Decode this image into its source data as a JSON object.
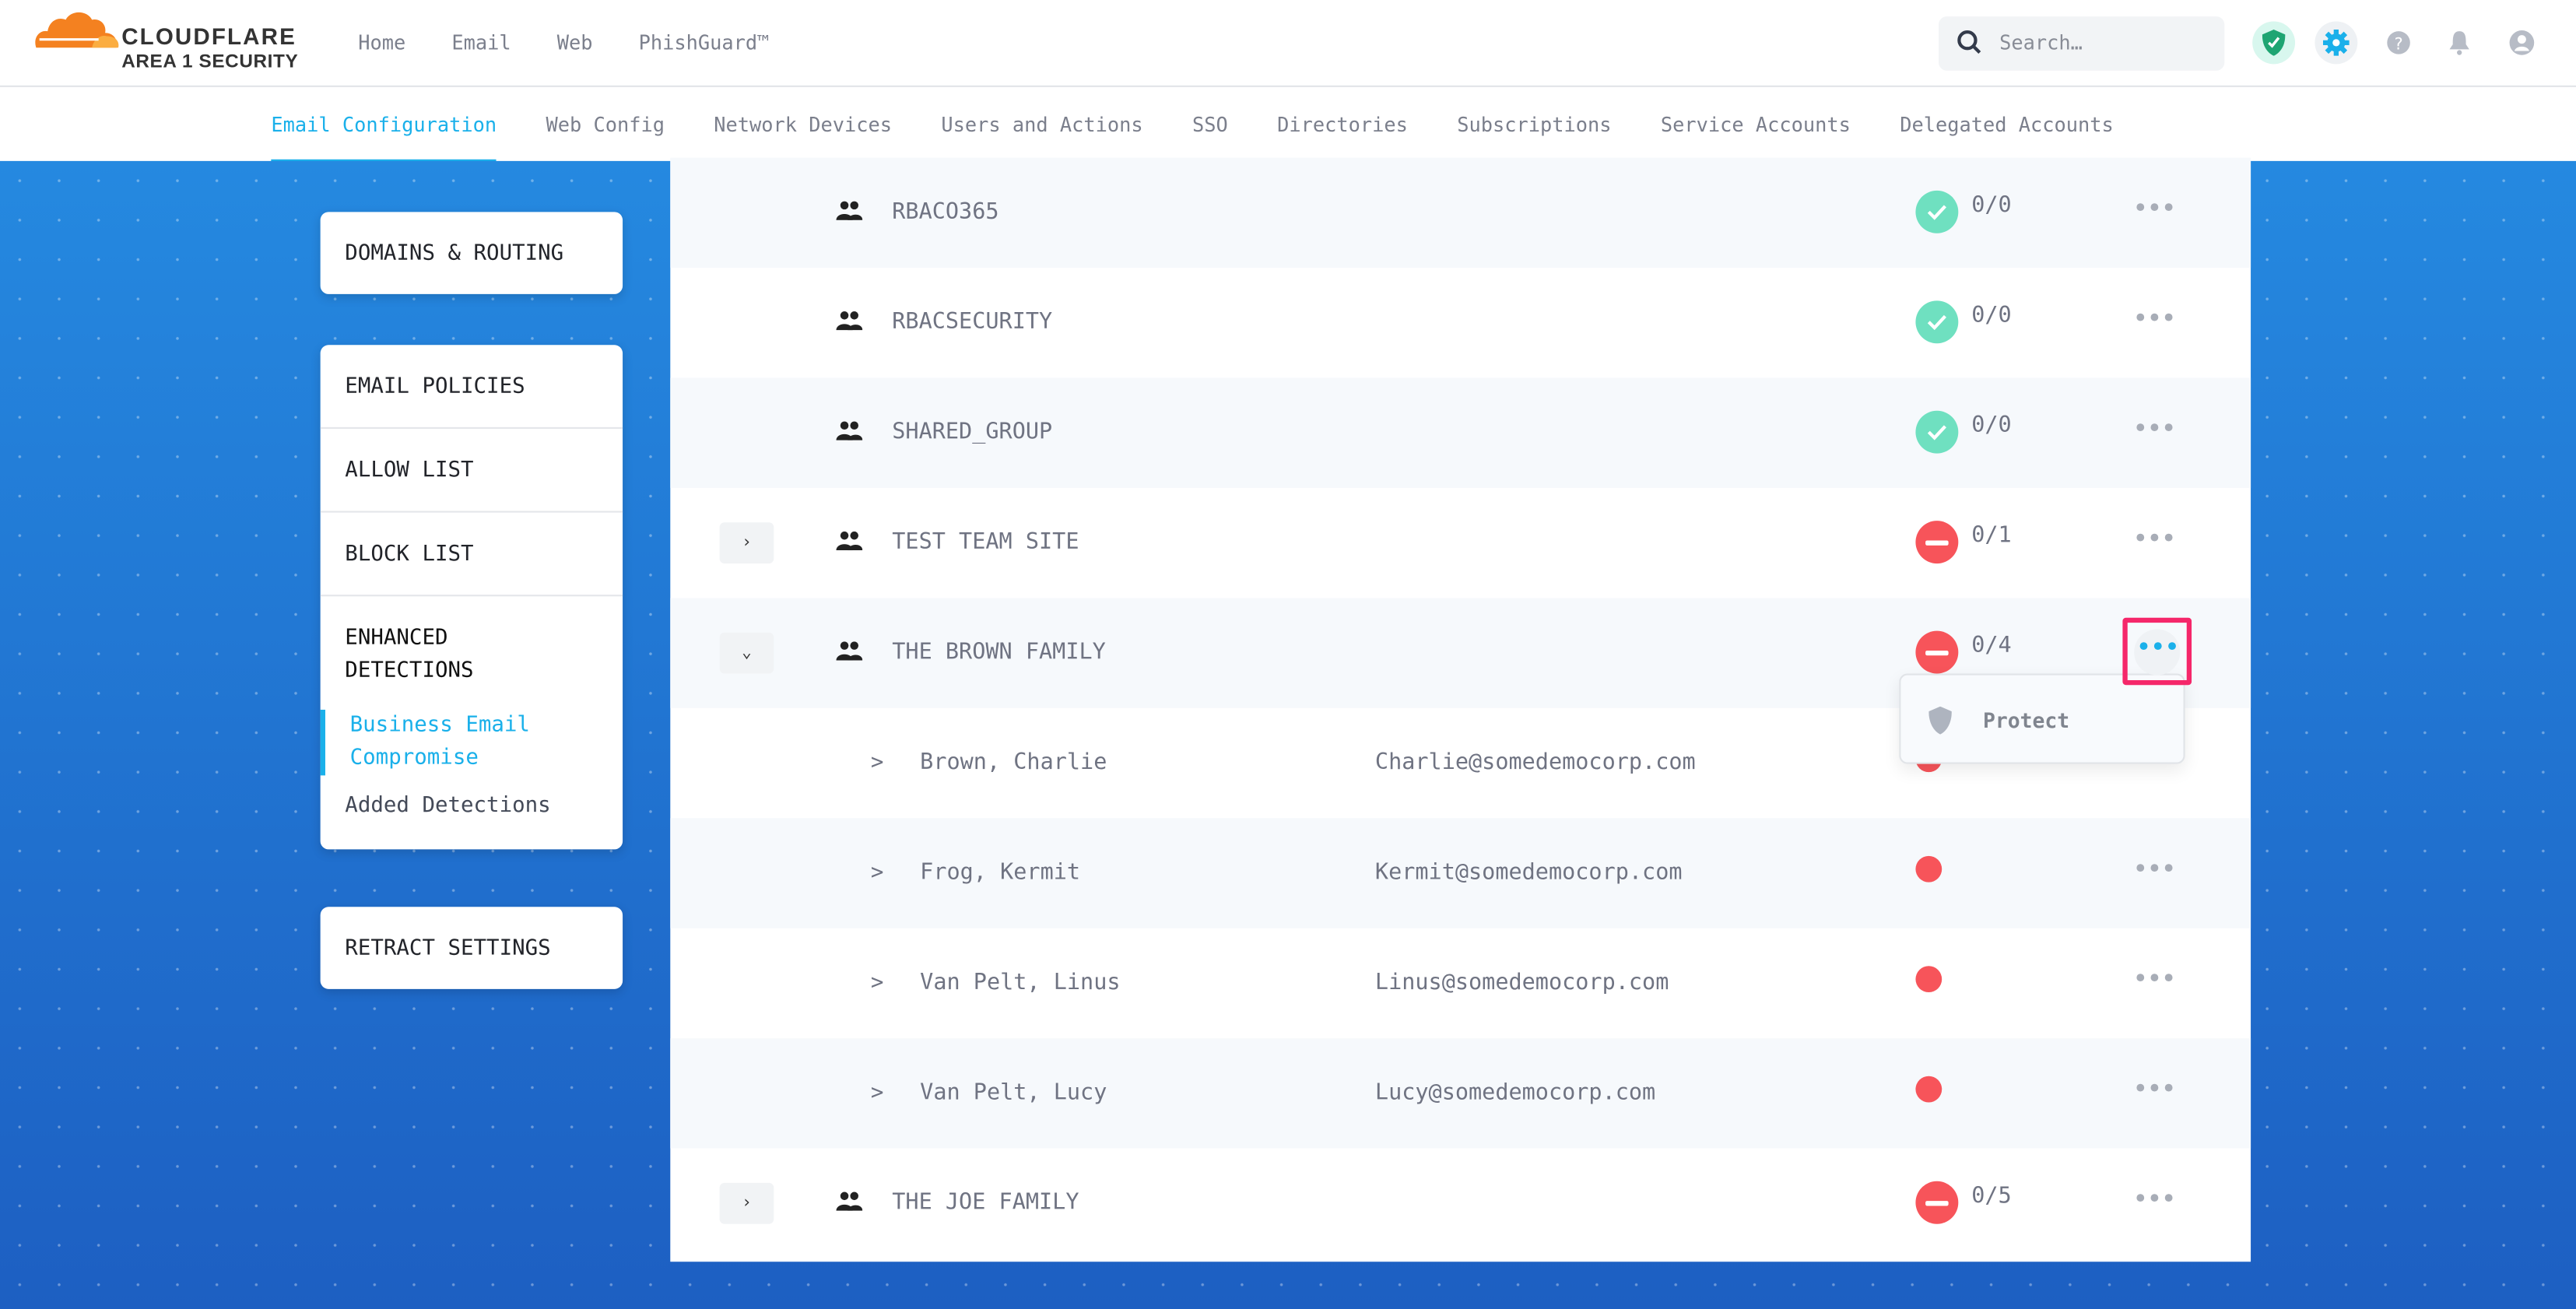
{
  "brand": {
    "name": "CLOUDFLARE",
    "product": "AREA 1 SECURITY"
  },
  "top_nav": [
    {
      "label": "Home"
    },
    {
      "label": "Email"
    },
    {
      "label": "Web"
    },
    {
      "label": "PhishGuard™"
    }
  ],
  "search": {
    "placeholder": "Search…"
  },
  "top_icons": [
    "shield-check-icon",
    "gear-icon",
    "help-icon",
    "bell-icon",
    "user-icon"
  ],
  "sub_nav": [
    {
      "label": "Email Configuration",
      "active": true
    },
    {
      "label": "Web Config"
    },
    {
      "label": "Network Devices"
    },
    {
      "label": "Users and Actions"
    },
    {
      "label": "SSO"
    },
    {
      "label": "Directories"
    },
    {
      "label": "Subscriptions"
    },
    {
      "label": "Service Accounts"
    },
    {
      "label": "Delegated Accounts"
    }
  ],
  "sidebar": {
    "domains": "DOMAINS & ROUTING",
    "email_policies": "EMAIL POLICIES",
    "allow_list": "ALLOW LIST",
    "block_list": "BLOCK LIST",
    "enhanced": "ENHANCED DETECTIONS",
    "bec": "Business Email Compromise",
    "added": "Added Detections",
    "retract": "RETRACT SETTINGS"
  },
  "groups": [
    {
      "name": "RBACO365",
      "status": "protected",
      "count": "0/0"
    },
    {
      "name": "RBACSECURITY",
      "status": "protected",
      "count": "0/0"
    },
    {
      "name": "SHARED_GROUP",
      "status": "protected",
      "count": "0/0"
    },
    {
      "name": "TEST TEAM SITE",
      "status": "unprotected",
      "count": "0/1",
      "expander": "›"
    },
    {
      "name": "THE BROWN FAMILY",
      "status": "unprotected",
      "count": "0/4",
      "expander": "⌄"
    }
  ],
  "members": [
    {
      "name": "Brown, Charlie",
      "email": "Charlie@somedemocorp.com"
    },
    {
      "name": "Frog, Kermit",
      "email": "Kermit@somedemocorp.com"
    },
    {
      "name": "Van Pelt, Linus",
      "email": "Linus@somedemocorp.com"
    },
    {
      "name": "Van Pelt, Lucy",
      "email": "Lucy@somedemocorp.com"
    }
  ],
  "last_group": {
    "name": "THE JOE FAMILY",
    "status": "unprotected",
    "count": "0/5",
    "expander": "›"
  },
  "member_caret": ">",
  "more_glyph": "•••",
  "context_menu": {
    "item": "Protect"
  },
  "colors": {
    "accent": "#1ab0ea",
    "ok": "#6fe0c0",
    "bad": "#f7545a",
    "highlight": "#f5276a"
  }
}
